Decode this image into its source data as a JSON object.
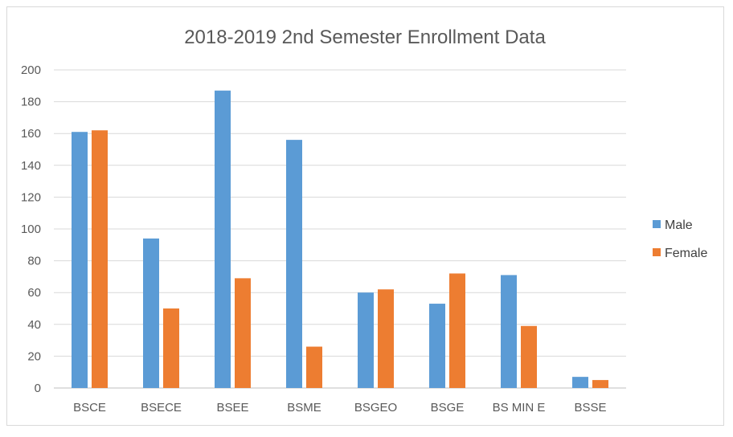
{
  "chart_data": {
    "type": "bar",
    "title": "2018-2019 2nd Semester Enrollment Data",
    "categories": [
      "BSCE",
      "BSECE",
      "BSEE",
      "BSME",
      "BSGEO",
      "BSGE",
      "BS MIN E",
      "BSSE"
    ],
    "series": [
      {
        "name": "Male",
        "color": "#5b9bd5",
        "values": [
          161,
          94,
          187,
          156,
          60,
          53,
          71,
          7
        ]
      },
      {
        "name": "Female",
        "color": "#ed7d31",
        "values": [
          162,
          50,
          69,
          26,
          62,
          72,
          39,
          5
        ]
      }
    ],
    "ylim": [
      0,
      200
    ],
    "yticks": [
      0,
      20,
      40,
      60,
      80,
      100,
      120,
      140,
      160,
      180,
      200
    ],
    "grid": true,
    "legend": "right",
    "xlabel": "",
    "ylabel": ""
  }
}
